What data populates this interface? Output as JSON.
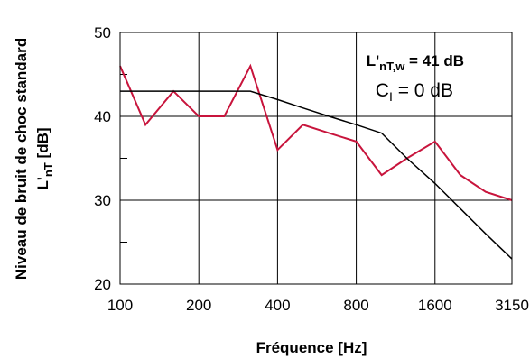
{
  "chart_data": {
    "type": "line",
    "ylabel_line1": "Niveau de bruit de choc standard",
    "ylabel_line2_main": "L'",
    "ylabel_line2_sub": "nT",
    "ylabel_line2_unit": " [dB]",
    "xlabel": "Fréquence [Hz]",
    "x_scale": "log",
    "x_ticks": [
      100,
      200,
      400,
      800,
      1600,
      3150
    ],
    "x_tick_labels": [
      "100",
      "200",
      "400",
      "800",
      "1600",
      "3150"
    ],
    "ylim": [
      20,
      50
    ],
    "y_ticks": [
      20,
      30,
      40,
      50
    ],
    "y_tick_labels": [
      "20",
      "30",
      "40",
      "50"
    ],
    "grid": true,
    "annotation": {
      "line1_main": "L'",
      "line1_sub": "nT,w",
      "line1_value": " = 41 dB",
      "line2_main": "C",
      "line2_sub": "I",
      "line2_value": " = 0 dB"
    },
    "series": [
      {
        "color": "#c8143c",
        "x": [
          100,
          125,
          160,
          200,
          250,
          315,
          400,
          500,
          630,
          800,
          1000,
          1250,
          1600,
          2000,
          2500,
          3150
        ],
        "values": [
          46,
          39,
          43,
          40,
          40,
          46,
          36,
          39,
          38,
          37,
          33,
          35,
          37,
          33,
          31,
          30
        ]
      },
      {
        "color": "#000000",
        "x": [
          100,
          125,
          160,
          200,
          250,
          315,
          400,
          500,
          630,
          800,
          1000,
          1250,
          1600,
          2000,
          2500,
          3150
        ],
        "values": [
          43,
          43,
          43,
          43,
          43,
          43,
          42,
          41,
          40,
          39,
          38,
          35,
          32,
          29,
          26,
          23
        ]
      }
    ]
  }
}
